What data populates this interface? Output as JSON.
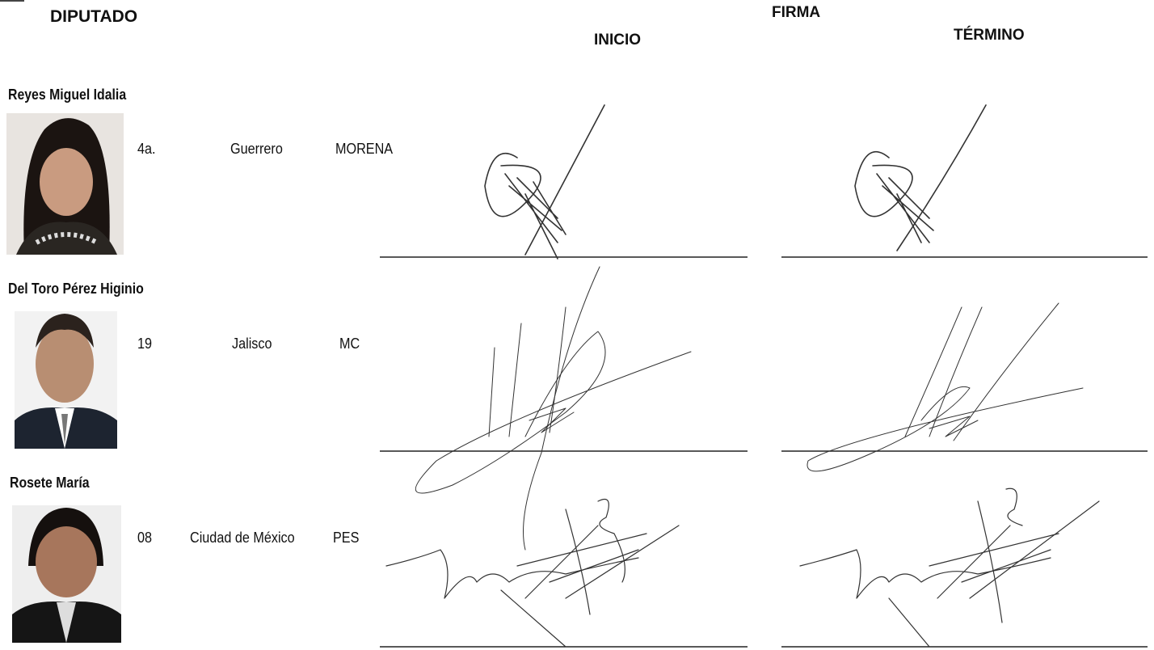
{
  "header": {
    "diputado": "DIPUTADO",
    "firma": "FIRMA",
    "inicio": "INICIO",
    "termino": "TÉRMINO"
  },
  "rows": [
    {
      "name": "Reyes Miguel Idalia",
      "district": "4a.",
      "state": "Guerrero",
      "party": "MORENA"
    },
    {
      "name": "Del Toro Pérez Higinio",
      "district": "19",
      "state": "Jalisco",
      "party": "MC"
    },
    {
      "name": "Rosete  María",
      "district": "08",
      "state": "Ciudad de México",
      "party": "PES"
    }
  ]
}
